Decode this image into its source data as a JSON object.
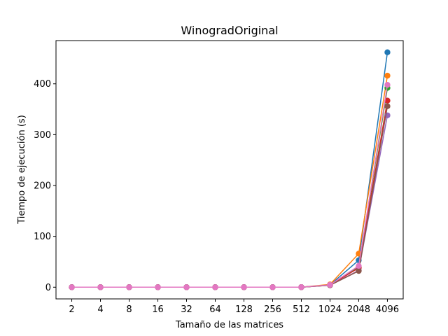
{
  "chart_data": {
    "type": "line",
    "title": "WinogradOriginal",
    "xlabel": "Tamaño de las matrices",
    "ylabel": "Tiempo de ejecución (s)",
    "categories": [
      "2",
      "4",
      "8",
      "16",
      "32",
      "64",
      "128",
      "256",
      "512",
      "1024",
      "2048",
      "4096"
    ],
    "ylim": [
      -23,
      485
    ],
    "yticks": [
      0,
      100,
      200,
      300,
      400
    ],
    "grid": false,
    "series": [
      {
        "color": "#1f77b4",
        "values": [
          0,
          0,
          0,
          0,
          0,
          0,
          0,
          0,
          0.1,
          4.5,
          53,
          462
        ]
      },
      {
        "color": "#ff7f0e",
        "values": [
          0,
          0,
          0,
          0,
          0,
          0,
          0,
          0,
          0.1,
          5.5,
          66,
          416
        ]
      },
      {
        "color": "#2ca02c",
        "values": [
          0,
          0,
          0,
          0,
          0,
          0,
          0,
          0,
          0.1,
          4.2,
          40,
          392
        ]
      },
      {
        "color": "#d62728",
        "values": [
          0,
          0,
          0,
          0,
          0,
          0,
          0,
          0,
          0.1,
          4.0,
          38,
          367
        ]
      },
      {
        "color": "#9467bd",
        "values": [
          0,
          0,
          0,
          0,
          0,
          0,
          0,
          0,
          0.1,
          3.8,
          33,
          338
        ]
      },
      {
        "color": "#8c564b",
        "values": [
          0,
          0,
          0,
          0,
          0,
          0,
          0,
          0,
          0.1,
          3.9,
          32,
          356
        ]
      },
      {
        "color": "#e377c2",
        "values": [
          0,
          0,
          0,
          0,
          0,
          0,
          0,
          0,
          0.1,
          4.6,
          42,
          398
        ]
      }
    ]
  }
}
